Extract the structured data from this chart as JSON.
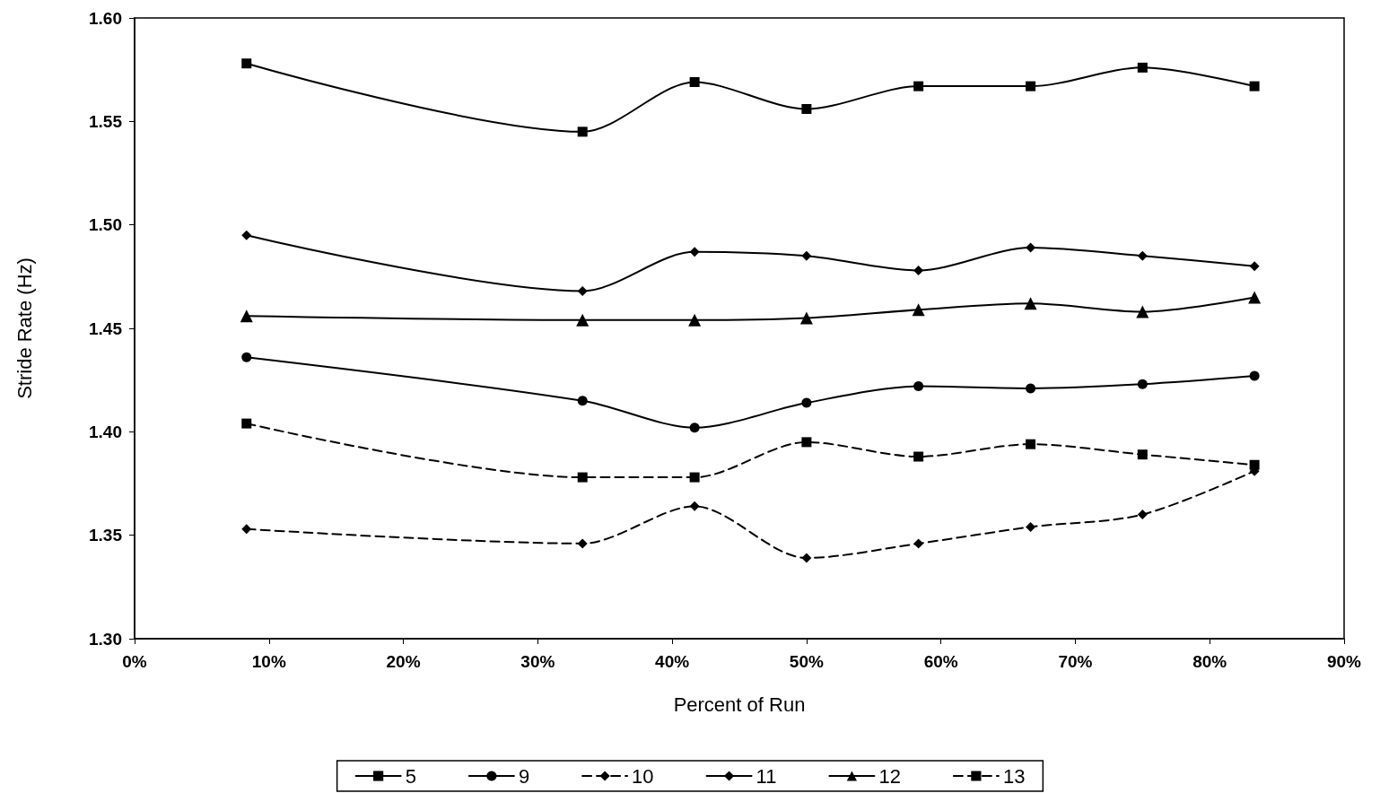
{
  "chart_data": {
    "type": "line",
    "xlabel": "Percent of Run",
    "ylabel": "Stride Rate (Hz)",
    "x": [
      8.33,
      33.33,
      41.67,
      50,
      58.33,
      66.67,
      75,
      83.33
    ],
    "series": [
      {
        "name": "5",
        "color": "#000000",
        "marker": "square",
        "line_style": "solid",
        "values": [
          1.578,
          1.545,
          1.569,
          1.556,
          1.567,
          1.567,
          1.576,
          1.567
        ]
      },
      {
        "name": "9",
        "color": "#000000",
        "marker": "circle",
        "line_style": "solid",
        "values": [
          1.436,
          1.415,
          1.402,
          1.414,
          1.422,
          1.421,
          1.423,
          1.427
        ]
      },
      {
        "name": "10",
        "color": "#000000",
        "marker": "diamond",
        "line_style": "dashed",
        "values": [
          1.353,
          1.346,
          1.364,
          1.339,
          1.346,
          1.354,
          1.36,
          1.381
        ]
      },
      {
        "name": "11",
        "color": "#000000",
        "marker": "diamond",
        "line_style": "solid",
        "values": [
          1.495,
          1.468,
          1.487,
          1.485,
          1.478,
          1.489,
          1.485,
          1.48
        ]
      },
      {
        "name": "12",
        "color": "#000000",
        "marker": "triangle",
        "line_style": "solid",
        "values": [
          1.456,
          1.454,
          1.454,
          1.455,
          1.459,
          1.462,
          1.458,
          1.465
        ]
      },
      {
        "name": "13",
        "color": "#000000",
        "marker": "square",
        "line_style": "dashed",
        "values": [
          1.404,
          1.378,
          1.378,
          1.395,
          1.388,
          1.394,
          1.389,
          1.384
        ]
      }
    ],
    "xlim": [
      0,
      90
    ],
    "xticks": [
      {
        "value": 0,
        "label": "0%"
      },
      {
        "value": 10,
        "label": "10%"
      },
      {
        "value": 20,
        "label": "20%"
      },
      {
        "value": 30,
        "label": "30%"
      },
      {
        "value": 40,
        "label": "40%"
      },
      {
        "value": 50,
        "label": "50%"
      },
      {
        "value": 60,
        "label": "60%"
      },
      {
        "value": 70,
        "label": "70%"
      },
      {
        "value": 80,
        "label": "80%"
      },
      {
        "value": 90,
        "label": "90%"
      }
    ],
    "ylim": [
      1.3,
      1.6
    ],
    "yticks": [
      {
        "value": 1.3,
        "label": "1.30"
      },
      {
        "value": 1.35,
        "label": "1.35"
      },
      {
        "value": 1.4,
        "label": "1.40"
      },
      {
        "value": 1.45,
        "label": "1.45"
      },
      {
        "value": 1.5,
        "label": "1.50"
      },
      {
        "value": 1.55,
        "label": "1.55"
      },
      {
        "value": 1.6,
        "label": "1.60"
      }
    ],
    "grid": false,
    "legend": "bottom"
  }
}
